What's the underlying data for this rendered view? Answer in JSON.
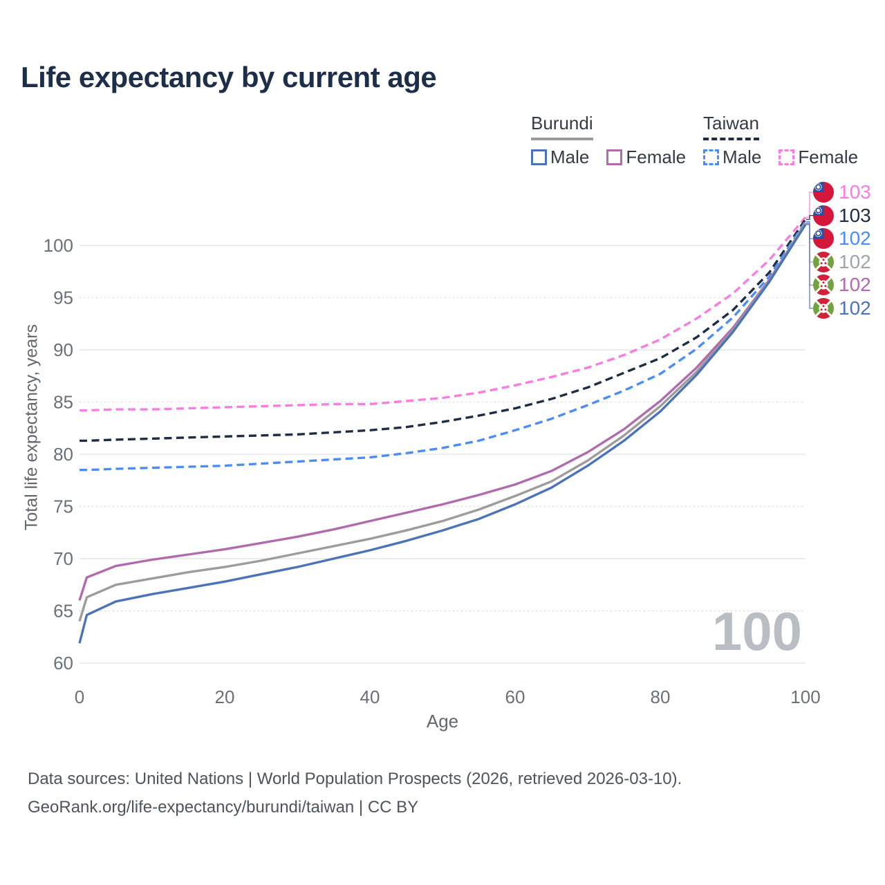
{
  "title": "Life expectancy by current age",
  "legend": {
    "groups": [
      {
        "title": "Burundi",
        "underline_style": "solid",
        "underline_color": "#9b9b9b",
        "items": [
          {
            "label": "Male",
            "color": "#4b73ba",
            "box_style": "solid"
          },
          {
            "label": "Female",
            "color": "#b16aae",
            "box_style": "solid"
          }
        ]
      },
      {
        "title": "Taiwan",
        "underline_style": "dashed",
        "underline_color": "#1e2c44",
        "items": [
          {
            "label": "Male",
            "color": "#4a8df6",
            "box_style": "dashed"
          },
          {
            "label": "Female",
            "color": "#fa7ce1",
            "box_style": "dashed"
          }
        ]
      }
    ]
  },
  "chart_data": {
    "type": "line",
    "title": "Life expectancy by current age",
    "xlabel": "Age",
    "ylabel": "Total life expectancy, years",
    "xlim": [
      0,
      100
    ],
    "ylim": [
      60,
      103
    ],
    "x_ticks": [
      0,
      20,
      40,
      60,
      80,
      100
    ],
    "y_ticks": [
      60,
      65,
      70,
      75,
      80,
      85,
      90,
      95,
      100
    ],
    "grid": "horizontal, solid at multiples of 10, dotted at 5s",
    "legend_position": "top-right",
    "x": [
      0,
      1,
      5,
      10,
      15,
      20,
      25,
      30,
      35,
      40,
      45,
      50,
      55,
      60,
      65,
      70,
      75,
      80,
      85,
      90,
      95,
      100
    ],
    "series": [
      {
        "name": "Taiwan Female",
        "country": "Taiwan",
        "sex": "female",
        "color": "#fa7ce1",
        "dash": true,
        "values": [
          84.2,
          84.2,
          84.3,
          84.3,
          84.4,
          84.5,
          84.6,
          84.7,
          84.8,
          84.8,
          85.1,
          85.4,
          85.9,
          86.6,
          87.4,
          88.3,
          89.5,
          91.0,
          93.0,
          95.4,
          98.6,
          102.7
        ]
      },
      {
        "name": "Taiwan Both sexes",
        "country": "Taiwan",
        "sex": "both",
        "color": "#1e2c44",
        "dash": true,
        "values": [
          81.3,
          81.3,
          81.4,
          81.5,
          81.6,
          81.7,
          81.8,
          81.9,
          82.1,
          82.3,
          82.6,
          83.1,
          83.7,
          84.4,
          85.3,
          86.4,
          87.8,
          89.2,
          91.2,
          93.8,
          97.4,
          102.5
        ]
      },
      {
        "name": "Taiwan Male",
        "country": "Taiwan",
        "sex": "male",
        "color": "#4a8df6",
        "dash": true,
        "values": [
          78.5,
          78.5,
          78.6,
          78.7,
          78.8,
          78.9,
          79.1,
          79.3,
          79.5,
          79.7,
          80.1,
          80.6,
          81.3,
          82.3,
          83.4,
          84.7,
          86.1,
          87.7,
          90.1,
          93.1,
          97.0,
          102.3
        ]
      },
      {
        "name": "Burundi Female",
        "country": "Burundi",
        "sex": "female",
        "color": "#b16aae",
        "dash": false,
        "values": [
          66.0,
          68.2,
          69.3,
          69.9,
          70.4,
          70.9,
          71.5,
          72.1,
          72.8,
          73.6,
          74.4,
          75.2,
          76.1,
          77.1,
          78.4,
          80.2,
          82.4,
          85.1,
          88.3,
          92.1,
          96.7,
          102.1
        ]
      },
      {
        "name": "Burundi Both sexes",
        "country": "Burundi",
        "sex": "both",
        "color": "#9c9c9c",
        "dash": false,
        "values": [
          64.0,
          66.3,
          67.5,
          68.1,
          68.7,
          69.2,
          69.8,
          70.5,
          71.2,
          71.9,
          72.7,
          73.6,
          74.7,
          76.0,
          77.4,
          79.4,
          81.8,
          84.6,
          87.9,
          91.9,
          96.6,
          102.2
        ]
      },
      {
        "name": "Burundi Male",
        "country": "Burundi",
        "sex": "male",
        "color": "#4b73ba",
        "dash": false,
        "values": [
          61.9,
          64.6,
          65.9,
          66.6,
          67.2,
          67.8,
          68.5,
          69.2,
          70.0,
          70.8,
          71.7,
          72.7,
          73.8,
          75.2,
          76.8,
          78.9,
          81.3,
          84.1,
          87.6,
          91.7,
          96.5,
          102.0
        ]
      }
    ],
    "end_labels": [
      {
        "series_index": 0,
        "value": "103",
        "flag": "taiwan",
        "color": "#fa7ce1"
      },
      {
        "series_index": 1,
        "value": "103",
        "flag": "taiwan",
        "color": "#1e2c44"
      },
      {
        "series_index": 2,
        "value": "102",
        "flag": "taiwan",
        "color": "#4a8df6"
      },
      {
        "series_index": 4,
        "value": "102",
        "flag": "burundi",
        "color": "#a1a5aa"
      },
      {
        "series_index": 3,
        "value": "102",
        "flag": "burundi",
        "color": "#b16aae"
      },
      {
        "series_index": 5,
        "value": "102",
        "flag": "burundi",
        "color": "#4b73ba"
      }
    ]
  },
  "watermark": "100",
  "footer": {
    "line1": "Data sources: United Nations | World Population Prospects (2026, retrieved 2026-03-10).",
    "line2": "GeoRank.org/life-expectancy/burundi/taiwan | CC BY"
  },
  "colors": {
    "title_text": "#1c2e49",
    "axis_text": "#62676e",
    "tick_text": "#6a7078",
    "grid_major": "#e3e5e8",
    "grid_minor": "#d7d9dc",
    "watermark": "#b9bec4",
    "footer_text": "#4d545d"
  }
}
